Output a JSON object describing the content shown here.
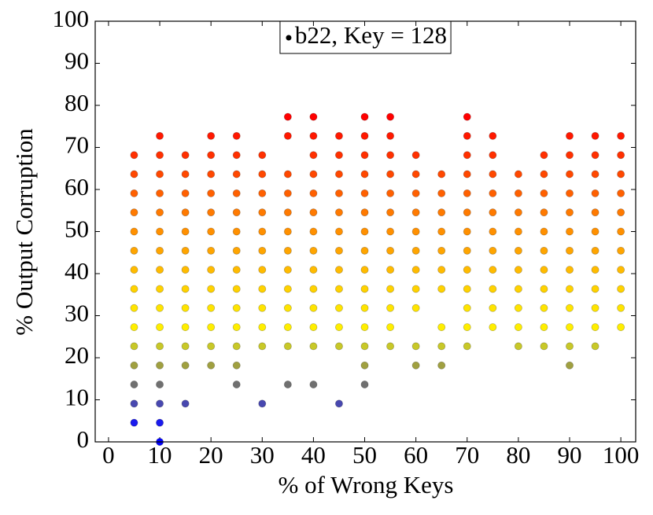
{
  "chart_data": {
    "type": "scatter",
    "xlabel": "% of Wrong Keys",
    "ylabel": "% Output Corruption",
    "xlim": [
      -2.6,
      102.9
    ],
    "ylim": [
      0,
      100
    ],
    "xticks": [
      0,
      10,
      20,
      30,
      40,
      50,
      60,
      70,
      80,
      90,
      100
    ],
    "yticks": [
      0,
      10,
      20,
      30,
      40,
      50,
      60,
      70,
      80,
      90,
      100
    ],
    "grid": false,
    "legend": "north",
    "series": [
      {
        "name": "b22, Key = 128",
        "color": "#000000",
        "x": [
          5,
          5,
          5,
          5,
          5,
          5,
          5,
          5,
          5,
          5,
          5,
          5,
          5,
          5,
          5,
          10,
          10,
          10,
          10,
          10,
          10,
          10,
          10,
          10,
          10,
          10,
          10,
          10,
          10,
          10,
          10,
          10,
          15,
          15,
          15,
          15,
          15,
          15,
          15,
          15,
          15,
          15,
          15,
          15,
          15,
          20,
          20,
          20,
          20,
          20,
          20,
          20,
          20,
          20,
          20,
          20,
          20,
          20,
          25,
          25,
          25,
          25,
          25,
          25,
          25,
          25,
          25,
          25,
          25,
          25,
          25,
          25,
          30,
          30,
          30,
          30,
          30,
          30,
          30,
          30,
          30,
          30,
          30,
          30,
          35,
          35,
          35,
          35,
          35,
          35,
          35,
          35,
          35,
          35,
          35,
          35,
          35,
          40,
          40,
          40,
          40,
          40,
          40,
          40,
          40,
          40,
          40,
          40,
          40,
          40,
          40,
          45,
          45,
          45,
          45,
          45,
          45,
          45,
          45,
          45,
          45,
          45,
          45,
          45,
          50,
          50,
          50,
          50,
          50,
          50,
          50,
          50,
          50,
          50,
          50,
          50,
          50,
          50,
          50,
          55,
          55,
          55,
          55,
          55,
          55,
          55,
          55,
          55,
          55,
          55,
          55,
          55,
          60,
          60,
          60,
          60,
          60,
          60,
          60,
          60,
          60,
          60,
          60,
          65,
          65,
          65,
          65,
          65,
          65,
          65,
          65,
          65,
          65,
          70,
          70,
          70,
          70,
          70,
          70,
          70,
          70,
          70,
          70,
          70,
          70,
          70,
          75,
          75,
          75,
          75,
          75,
          75,
          75,
          75,
          75,
          75,
          75,
          80,
          80,
          80,
          80,
          80,
          80,
          80,
          80,
          80,
          80,
          85,
          85,
          85,
          85,
          85,
          85,
          85,
          85,
          85,
          85,
          85,
          90,
          90,
          90,
          90,
          90,
          90,
          90,
          90,
          90,
          90,
          90,
          90,
          90,
          95,
          95,
          95,
          95,
          95,
          95,
          95,
          95,
          95,
          95,
          95,
          95,
          100,
          100,
          100,
          100,
          100,
          100,
          100,
          100,
          100,
          100,
          100
        ],
        "y": [
          68.18,
          63.64,
          59.09,
          54.55,
          50,
          45.45,
          40.91,
          36.36,
          31.82,
          27.27,
          22.73,
          18.18,
          13.64,
          9.09,
          4.55,
          72.73,
          68.18,
          63.64,
          59.09,
          54.55,
          50,
          45.45,
          40.91,
          36.36,
          31.82,
          27.27,
          22.73,
          18.18,
          13.64,
          9.09,
          4.55,
          0,
          68.18,
          63.64,
          59.09,
          54.55,
          50,
          45.45,
          40.91,
          36.36,
          31.82,
          27.27,
          22.73,
          18.18,
          9.09,
          72.73,
          68.18,
          63.64,
          59.09,
          54.55,
          50,
          45.45,
          40.91,
          36.36,
          31.82,
          27.27,
          22.73,
          18.18,
          72.73,
          68.18,
          63.64,
          59.09,
          54.55,
          50,
          45.45,
          40.91,
          36.36,
          31.82,
          27.27,
          22.73,
          18.18,
          13.64,
          68.18,
          63.64,
          59.09,
          54.55,
          50,
          45.45,
          40.91,
          36.36,
          31.82,
          27.27,
          22.73,
          9.09,
          77.27,
          72.73,
          63.64,
          59.09,
          54.55,
          50,
          45.45,
          40.91,
          36.36,
          31.82,
          27.27,
          22.73,
          13.64,
          77.27,
          72.73,
          68.18,
          63.64,
          59.09,
          54.55,
          50,
          45.45,
          40.91,
          36.36,
          31.82,
          27.27,
          22.73,
          13.64,
          72.73,
          68.18,
          63.64,
          59.09,
          54.55,
          50,
          45.45,
          40.91,
          36.36,
          31.82,
          27.27,
          22.73,
          9.09,
          77.27,
          72.73,
          68.18,
          63.64,
          59.09,
          54.55,
          50,
          45.45,
          40.91,
          36.36,
          31.82,
          27.27,
          22.73,
          18.18,
          13.64,
          77.27,
          72.73,
          68.18,
          63.64,
          59.09,
          54.55,
          50,
          45.45,
          40.91,
          36.36,
          31.82,
          27.27,
          22.73,
          68.18,
          63.64,
          59.09,
          54.55,
          50,
          45.45,
          40.91,
          36.36,
          31.82,
          22.73,
          18.18,
          63.64,
          59.09,
          54.55,
          50,
          45.45,
          40.91,
          36.36,
          27.27,
          22.73,
          18.18,
          77.27,
          72.73,
          68.18,
          63.64,
          59.09,
          54.55,
          50,
          45.45,
          40.91,
          36.36,
          31.82,
          27.27,
          22.73,
          72.73,
          68.18,
          63.64,
          59.09,
          54.55,
          50,
          45.45,
          40.91,
          36.36,
          31.82,
          27.27,
          63.64,
          59.09,
          54.55,
          50,
          45.45,
          40.91,
          36.36,
          31.82,
          27.27,
          22.73,
          68.18,
          63.64,
          59.09,
          54.55,
          50,
          45.45,
          40.91,
          36.36,
          31.82,
          27.27,
          22.73,
          72.73,
          68.18,
          63.64,
          59.09,
          54.55,
          50,
          45.45,
          40.91,
          36.36,
          31.82,
          27.27,
          22.73,
          18.18,
          72.73,
          68.18,
          63.64,
          59.09,
          54.55,
          50,
          45.45,
          40.91,
          36.36,
          31.82,
          27.27,
          22.73,
          72.73,
          68.18,
          63.64,
          59.09,
          54.55,
          50,
          45.45,
          40.91,
          36.36,
          31.82,
          27.27
        ],
        "colors": [
          "#ff3000",
          "#ff4800",
          "#ff6000",
          "#ff7a00",
          "#ff9000",
          "#ffa500",
          "#ffbb00",
          "#ffd200",
          "#ffe400",
          "#ffee00",
          "#c8c828",
          "#a0a040",
          "#707070",
          "#4848b0",
          "#1a1aee",
          "#ff1800",
          "#ff3000",
          "#ff4800",
          "#ff6000",
          "#ff7a00",
          "#ff9000",
          "#ffa500",
          "#ffbb00",
          "#ffd200",
          "#ffe400",
          "#ffee00",
          "#c8c828",
          "#a0a040",
          "#707070",
          "#4848b0",
          "#1a1aee",
          "#0000ff",
          "#ff3000",
          "#ff4800",
          "#ff6000",
          "#ff7a00",
          "#ff9000",
          "#ffa500",
          "#ffbb00",
          "#ffd200",
          "#ffe400",
          "#ffee00",
          "#c8c828",
          "#a0a040",
          "#4848b0",
          "#ff1800",
          "#ff3000",
          "#ff4800",
          "#ff6000",
          "#ff7a00",
          "#ff9000",
          "#ffa500",
          "#ffbb00",
          "#ffd200",
          "#ffe400",
          "#ffee00",
          "#c8c828",
          "#a0a040",
          "#ff1800",
          "#ff3000",
          "#ff4800",
          "#ff6000",
          "#ff7a00",
          "#ff9000",
          "#ffa500",
          "#ffbb00",
          "#ffd200",
          "#ffe400",
          "#ffee00",
          "#c8c828",
          "#a0a040",
          "#707070",
          "#ff3000",
          "#ff4800",
          "#ff6000",
          "#ff7a00",
          "#ff9000",
          "#ffa500",
          "#ffbb00",
          "#ffd200",
          "#ffe400",
          "#ffee00",
          "#c8c828",
          "#4848b0",
          "#ff0000",
          "#ff1800",
          "#ff4800",
          "#ff6000",
          "#ff7a00",
          "#ff9000",
          "#ffa500",
          "#ffbb00",
          "#ffd200",
          "#ffe400",
          "#ffee00",
          "#c8c828",
          "#707070",
          "#ff0000",
          "#ff1800",
          "#ff3000",
          "#ff4800",
          "#ff6000",
          "#ff7a00",
          "#ff9000",
          "#ffa500",
          "#ffbb00",
          "#ffd200",
          "#ffe400",
          "#ffee00",
          "#c8c828",
          "#707070",
          "#ff1800",
          "#ff3000",
          "#ff4800",
          "#ff6000",
          "#ff7a00",
          "#ff9000",
          "#ffa500",
          "#ffbb00",
          "#ffd200",
          "#ffe400",
          "#ffee00",
          "#c8c828",
          "#4848b0",
          "#ff0000",
          "#ff1800",
          "#ff3000",
          "#ff4800",
          "#ff6000",
          "#ff7a00",
          "#ff9000",
          "#ffa500",
          "#ffbb00",
          "#ffd200",
          "#ffe400",
          "#ffee00",
          "#c8c828",
          "#a0a040",
          "#707070",
          "#ff0000",
          "#ff1800",
          "#ff3000",
          "#ff4800",
          "#ff6000",
          "#ff7a00",
          "#ff9000",
          "#ffa500",
          "#ffbb00",
          "#ffd200",
          "#ffe400",
          "#ffee00",
          "#c8c828",
          "#ff3000",
          "#ff4800",
          "#ff6000",
          "#ff7a00",
          "#ff9000",
          "#ffa500",
          "#ffbb00",
          "#ffd200",
          "#ffe400",
          "#c8c828",
          "#a0a040",
          "#ff4800",
          "#ff6000",
          "#ff7a00",
          "#ff9000",
          "#ffa500",
          "#ffbb00",
          "#ffd200",
          "#ffee00",
          "#c8c828",
          "#a0a040",
          "#ff0000",
          "#ff1800",
          "#ff3000",
          "#ff4800",
          "#ff6000",
          "#ff7a00",
          "#ff9000",
          "#ffa500",
          "#ffbb00",
          "#ffd200",
          "#ffe400",
          "#ffee00",
          "#c8c828",
          "#ff1800",
          "#ff3000",
          "#ff4800",
          "#ff6000",
          "#ff7a00",
          "#ff9000",
          "#ffa500",
          "#ffbb00",
          "#ffd200",
          "#ffe400",
          "#ffee00",
          "#ff4800",
          "#ff6000",
          "#ff7a00",
          "#ff9000",
          "#ffa500",
          "#ffbb00",
          "#ffd200",
          "#ffe400",
          "#ffee00",
          "#c8c828",
          "#ff3000",
          "#ff4800",
          "#ff6000",
          "#ff7a00",
          "#ff9000",
          "#ffa500",
          "#ffbb00",
          "#ffd200",
          "#ffe400",
          "#ffee00",
          "#c8c828",
          "#ff1800",
          "#ff3000",
          "#ff4800",
          "#ff6000",
          "#ff7a00",
          "#ff9000",
          "#ffa500",
          "#ffbb00",
          "#ffd200",
          "#ffe400",
          "#ffee00",
          "#c8c828",
          "#a0a040",
          "#ff1800",
          "#ff3000",
          "#ff4800",
          "#ff6000",
          "#ff7a00",
          "#ff9000",
          "#ffa500",
          "#ffbb00",
          "#ffd200",
          "#ffe400",
          "#ffee00",
          "#c8c828",
          "#ff1800",
          "#ff3000",
          "#ff4800",
          "#ff6000",
          "#ff7a00",
          "#ff9000",
          "#ffa500",
          "#ffbb00",
          "#ffd200",
          "#ffe400",
          "#ffee00"
        ]
      }
    ]
  }
}
